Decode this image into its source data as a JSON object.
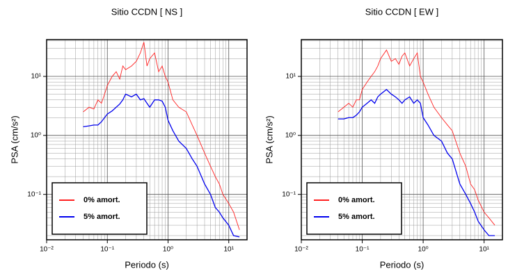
{
  "chart_data": [
    {
      "type": "line",
      "title": "Sitio CCDN [ NS ]",
      "xlabel": "Periodo (s)",
      "ylabel": "PSA (cm/s²)",
      "xscale": "log",
      "yscale": "log",
      "grid": true,
      "legend": "lower left",
      "xlim": [
        0.01,
        20
      ],
      "ylim": [
        0.017,
        42
      ],
      "xticks": [
        {
          "value": 0.01,
          "label": "10⁻²"
        },
        {
          "value": 0.1,
          "label": "10⁻¹"
        },
        {
          "value": 1,
          "label": "10⁰"
        },
        {
          "value": 10,
          "label": "10¹"
        }
      ],
      "yticks": [
        {
          "value": 0.1,
          "label": "10⁻¹"
        },
        {
          "value": 1,
          "label": "10⁰"
        },
        {
          "value": 10,
          "label": "10¹"
        }
      ],
      "x": [
        0.04,
        0.05,
        0.06,
        0.07,
        0.08,
        0.09,
        0.1,
        0.12,
        0.14,
        0.16,
        0.18,
        0.2,
        0.25,
        0.3,
        0.35,
        0.4,
        0.45,
        0.5,
        0.6,
        0.7,
        0.8,
        0.9,
        1.0,
        1.2,
        1.5,
        2,
        2.5,
        3,
        4,
        5,
        6,
        7,
        8,
        10,
        12,
        15
      ],
      "series": [
        {
          "name": "0% amort.",
          "color": "#ff2020",
          "values": [
            2.5,
            3,
            2.8,
            4,
            3.5,
            5,
            7,
            10,
            12,
            9,
            15,
            13,
            15,
            18,
            25,
            38,
            15,
            20,
            25,
            12,
            15,
            10,
            8,
            4,
            3,
            2.5,
            1.5,
            1,
            0.5,
            0.3,
            0.2,
            0.15,
            0.1,
            0.07,
            0.05,
            0.025
          ]
        },
        {
          "name": "5% amort.",
          "color": "#0000ee",
          "values": [
            1.4,
            1.45,
            1.5,
            1.5,
            1.7,
            2,
            2.3,
            2.6,
            3,
            3.4,
            4,
            5,
            4.5,
            5,
            4,
            4.2,
            3.5,
            3,
            4,
            4,
            3.8,
            3,
            1.8,
            1.2,
            0.8,
            0.6,
            0.4,
            0.3,
            0.15,
            0.1,
            0.06,
            0.05,
            0.04,
            0.03,
            0.02,
            0.019
          ]
        }
      ]
    },
    {
      "type": "line",
      "title": "Sitio CCDN [ EW ]",
      "xlabel": "Periodo (s)",
      "ylabel": "PSA (cm/s²)",
      "xscale": "log",
      "yscale": "log",
      "grid": true,
      "legend": "lower left",
      "xlim": [
        0.01,
        20
      ],
      "ylim": [
        0.017,
        42
      ],
      "xticks": [
        {
          "value": 0.01,
          "label": "10⁻²"
        },
        {
          "value": 0.1,
          "label": "10⁻¹"
        },
        {
          "value": 1,
          "label": "10⁰"
        },
        {
          "value": 10,
          "label": "10¹"
        }
      ],
      "yticks": [
        {
          "value": 0.1,
          "label": "10⁻¹"
        },
        {
          "value": 1,
          "label": "10⁰"
        },
        {
          "value": 10,
          "label": "10¹"
        }
      ],
      "x": [
        0.04,
        0.05,
        0.06,
        0.07,
        0.08,
        0.09,
        0.1,
        0.12,
        0.14,
        0.16,
        0.18,
        0.2,
        0.25,
        0.3,
        0.35,
        0.4,
        0.45,
        0.5,
        0.6,
        0.7,
        0.8,
        0.9,
        1.0,
        1.2,
        1.5,
        2,
        2.5,
        3,
        4,
        5,
        6,
        7,
        8,
        10,
        12,
        15
      ],
      "series": [
        {
          "name": "0% amort.",
          "color": "#ff2020",
          "values": [
            2.5,
            3,
            3.5,
            3,
            4,
            4,
            6,
            8,
            10,
            12,
            15,
            20,
            28,
            18,
            20,
            16,
            22,
            25,
            15,
            20,
            25,
            10,
            8,
            5,
            3,
            2,
            1.5,
            1.2,
            0.5,
            0.3,
            0.15,
            0.12,
            0.08,
            0.05,
            0.04,
            0.03
          ]
        },
        {
          "name": "5% amort.",
          "color": "#0000ee",
          "values": [
            1.9,
            1.9,
            2,
            2,
            2.2,
            2.5,
            3,
            3.5,
            4,
            3.5,
            4.5,
            5,
            6,
            5,
            4.5,
            4,
            3.5,
            4,
            4.5,
            3.5,
            4,
            3.5,
            2,
            1.5,
            1,
            0.8,
            0.5,
            0.4,
            0.15,
            0.1,
            0.07,
            0.05,
            0.035,
            0.025,
            0.02,
            0.02
          ]
        }
      ]
    }
  ]
}
